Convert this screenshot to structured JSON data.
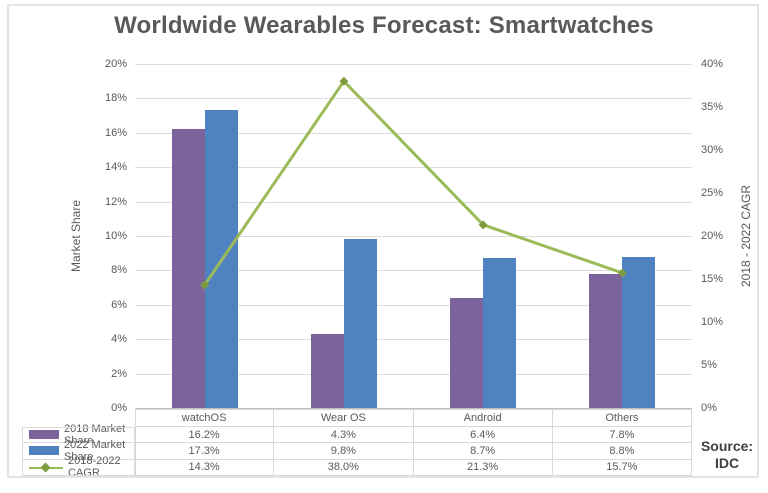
{
  "chart_data": {
    "type": "combo",
    "title": "Worldwide Wearables Forecast: Smartwatches",
    "categories": [
      "watchOS",
      "Wear OS",
      "Android",
      "Others"
    ],
    "series": [
      {
        "name": "2018 Market Share",
        "kind": "bar",
        "axis": "left",
        "color": "#7d639b",
        "values": [
          16.2,
          4.3,
          6.4,
          7.8
        ]
      },
      {
        "name": "2022 Market Share",
        "kind": "bar",
        "axis": "left",
        "color": "#4e82c0",
        "values": [
          17.3,
          9.8,
          8.7,
          8.8
        ]
      },
      {
        "name": "2018-2022 CAGR",
        "kind": "line",
        "axis": "right",
        "color": "#9bbb59",
        "marker_color": "#7e9c3f",
        "values": [
          14.3,
          38.0,
          21.3,
          15.7
        ]
      }
    ],
    "left_axis": {
      "label": "Market Share",
      "min": 0,
      "max": 20,
      "step": 2,
      "tick_suffix": "%"
    },
    "right_axis": {
      "label": "2018 - 2022 CAGR",
      "min": 0,
      "max": 40,
      "step": 5,
      "tick_suffix": "%"
    },
    "grid": true,
    "legend_position": "data-table-left",
    "data_table_values": [
      [
        "16.2%",
        "4.3%",
        "6.4%",
        "7.8%"
      ],
      [
        "17.3%",
        "9.8%",
        "8.7%",
        "8.8%"
      ],
      [
        "14.3%",
        "38.0%",
        "21.3%",
        "15.7%"
      ]
    ]
  },
  "source": {
    "line1": "Source:",
    "line2": "IDC"
  },
  "colors": {
    "title_text": "#595959",
    "axis_text": "#595959",
    "gridline": "#dcdcdc",
    "table_border": "#d9d9d9",
    "frame_border": "#e4e4e4"
  }
}
